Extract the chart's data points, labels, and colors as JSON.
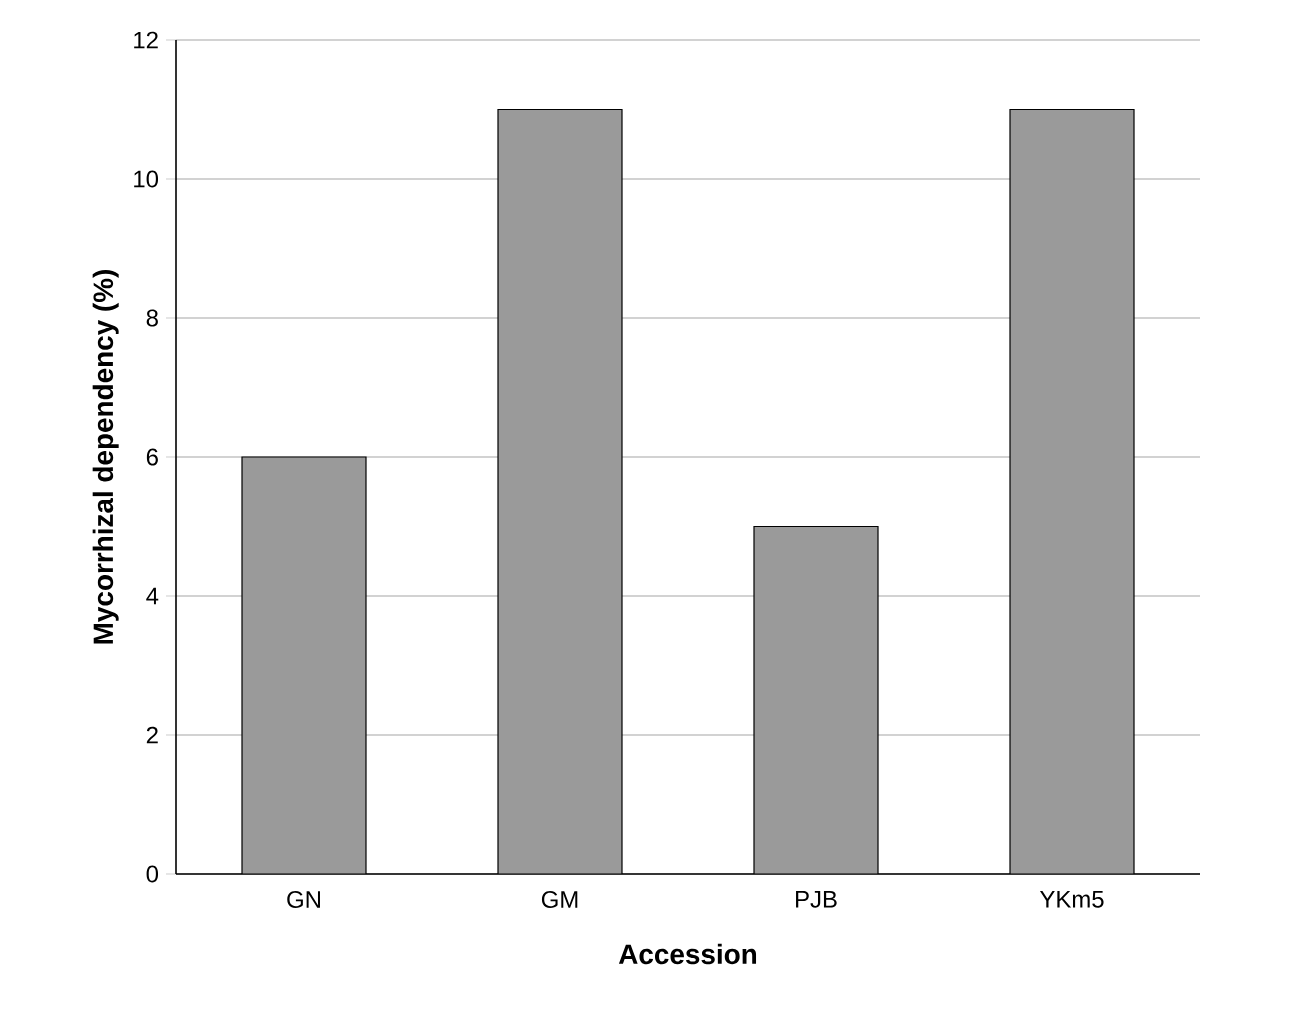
{
  "chart_data": {
    "type": "bar",
    "xlabel": "Accession",
    "ylabel": "Mycorrhizal dependency (%)",
    "categories": [
      "GN",
      "GM",
      "PJB",
      "YKm5"
    ],
    "values": [
      6,
      11,
      5,
      11
    ],
    "color": "#9a9a9a",
    "ylim": [
      0,
      12
    ],
    "yticks": [
      0,
      2,
      4,
      6,
      8,
      10,
      12
    ],
    "grid": "y"
  }
}
